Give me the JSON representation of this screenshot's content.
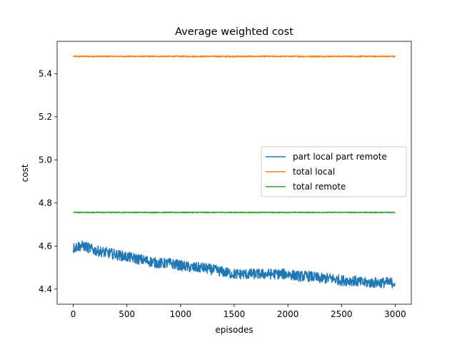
{
  "chart_data": {
    "type": "line",
    "title": "Average weighted cost",
    "xlabel": "episodes",
    "ylabel": "cost",
    "xlim": [
      -150,
      3150
    ],
    "ylim": [
      4.33,
      5.55
    ],
    "xticks": [
      0,
      500,
      1000,
      1500,
      2000,
      2500,
      3000
    ],
    "yticks": [
      4.4,
      4.6,
      4.8,
      5.0,
      5.2,
      5.4
    ],
    "xtick_labels": [
      "0",
      "500",
      "1000",
      "1500",
      "2000",
      "2500",
      "3000"
    ],
    "ytick_labels": [
      "4.4",
      "4.6",
      "4.8",
      "5.0",
      "5.2",
      "5.4"
    ],
    "grid": false,
    "legend_position": "center-right",
    "series": [
      {
        "name": "part local part remote",
        "color": "#1f77b4",
        "x": [
          0,
          50,
          100,
          150,
          200,
          300,
          400,
          500,
          600,
          700,
          800,
          900,
          1000,
          1100,
          1200,
          1300,
          1400,
          1500,
          1600,
          1700,
          1800,
          1900,
          2000,
          2100,
          2200,
          2300,
          2400,
          2500,
          2600,
          2700,
          2800,
          2900,
          3000
        ],
        "values": [
          4.59,
          4.6,
          4.6,
          4.59,
          4.58,
          4.57,
          4.56,
          4.55,
          4.54,
          4.53,
          4.52,
          4.52,
          4.51,
          4.5,
          4.5,
          4.49,
          4.48,
          4.47,
          4.47,
          4.47,
          4.47,
          4.47,
          4.47,
          4.46,
          4.46,
          4.45,
          4.45,
          4.44,
          4.44,
          4.43,
          4.43,
          4.43,
          4.43
        ],
        "noise_range": 0.035
      },
      {
        "name": "total local",
        "color": "#ff7f0e",
        "x": [
          0,
          3000
        ],
        "values": [
          5.48,
          5.48
        ],
        "noise_range": 0.006
      },
      {
        "name": "total remote",
        "color": "#2ca02c",
        "x": [
          0,
          3000
        ],
        "values": [
          4.756,
          4.756
        ],
        "noise_range": 0.004
      }
    ]
  }
}
